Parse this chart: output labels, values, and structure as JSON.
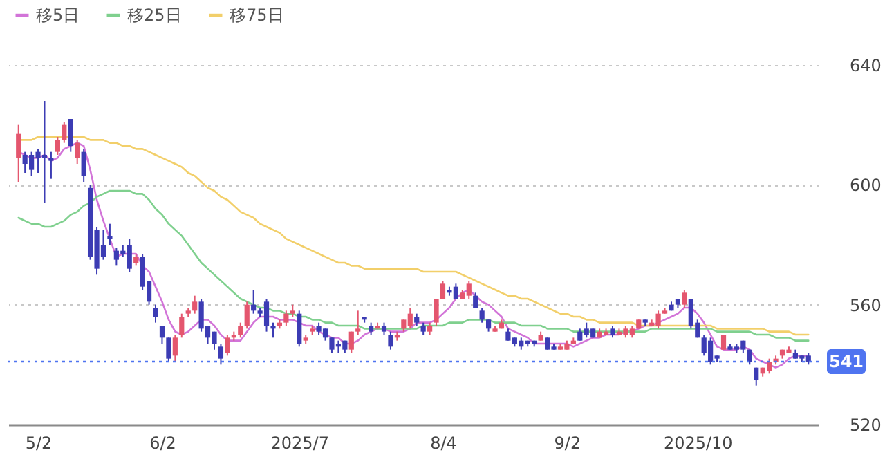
{
  "chart_data": {
    "type": "candlestick",
    "legend": "top left",
    "grid": "y",
    "ylim": [
      520,
      640
    ],
    "yticks": [
      520,
      560,
      600,
      640
    ],
    "categories": [
      null,
      null,
      null,
      "5/2",
      null,
      null,
      null,
      null,
      null,
      null,
      null,
      null,
      null,
      null,
      null,
      null,
      null,
      null,
      null,
      null,
      null,
      null,
      "6/2",
      null,
      null,
      null,
      null,
      null,
      null,
      null,
      null,
      null,
      null,
      null,
      null,
      null,
      null,
      null,
      null,
      null,
      null,
      null,
      null,
      "2025/7",
      null,
      null,
      null,
      null,
      null,
      null,
      null,
      null,
      null,
      null,
      null,
      null,
      null,
      null,
      null,
      null,
      null,
      null,
      null,
      null,
      null,
      "8/4",
      null,
      null,
      null,
      null,
      null,
      null,
      null,
      null,
      null,
      null,
      null,
      null,
      null,
      null,
      null,
      null,
      null,
      null,
      "9/2",
      null,
      null,
      null,
      null,
      null,
      null,
      null,
      null,
      null,
      null,
      null,
      null,
      null,
      null,
      null,
      null,
      null,
      null,
      null,
      "2025/10",
      null,
      null,
      null,
      null,
      null,
      null,
      null,
      null,
      null,
      null,
      null,
      null,
      null,
      null,
      null,
      null,
      null
    ],
    "ohlc": [
      [
        609,
        620,
        601,
        617
      ],
      [
        610,
        611,
        604,
        607
      ],
      [
        610,
        611,
        603,
        605
      ],
      [
        611,
        612,
        604,
        609
      ],
      [
        610,
        628,
        594,
        609
      ],
      [
        609,
        611,
        602,
        608
      ],
      [
        611,
        616,
        610,
        615
      ],
      [
        615,
        621,
        614,
        620
      ],
      [
        622,
        622,
        611,
        613
      ],
      [
        609,
        615,
        607,
        614
      ],
      [
        611,
        612,
        601,
        603
      ],
      [
        599,
        600,
        575,
        576
      ],
      [
        585,
        586,
        570,
        572
      ],
      [
        580,
        585,
        575,
        576
      ],
      [
        583,
        587,
        580,
        582
      ],
      [
        578,
        579,
        573,
        575
      ],
      [
        578,
        580,
        576,
        577
      ],
      [
        580,
        582,
        571,
        572
      ],
      [
        574,
        577,
        573,
        576
      ],
      [
        576,
        577,
        565,
        566
      ],
      [
        568,
        568,
        560,
        561
      ],
      [
        559,
        560,
        554,
        556
      ],
      [
        553,
        553,
        547,
        549
      ],
      [
        549,
        549,
        541,
        542
      ],
      [
        543,
        550,
        541,
        549
      ],
      [
        550,
        557,
        549,
        556
      ],
      [
        557,
        559,
        556,
        558
      ],
      [
        558,
        563,
        557,
        561
      ],
      [
        561,
        562,
        551,
        552
      ],
      [
        553,
        553,
        547,
        549
      ],
      [
        551,
        551,
        545,
        547
      ],
      [
        546,
        547,
        540,
        542
      ],
      [
        544,
        550,
        543,
        549
      ],
      [
        549,
        551,
        548,
        550
      ],
      [
        550,
        554,
        549,
        553
      ],
      [
        553,
        561,
        552,
        560
      ],
      [
        560,
        565,
        557,
        558
      ],
      [
        558,
        559,
        556,
        557
      ],
      [
        561,
        562,
        551,
        553
      ],
      [
        553,
        554,
        549,
        552
      ],
      [
        553,
        555,
        552,
        554
      ],
      [
        554,
        558,
        553,
        557
      ],
      [
        557,
        560,
        556,
        558
      ],
      [
        557,
        558,
        546,
        547
      ],
      [
        548,
        550,
        547,
        549
      ],
      [
        551,
        553,
        550,
        552
      ],
      [
        553,
        554,
        550,
        551
      ],
      [
        552,
        552,
        548,
        549
      ],
      [
        549,
        549,
        544,
        545
      ],
      [
        547,
        548,
        544,
        546
      ],
      [
        548,
        548,
        544,
        545
      ],
      [
        545,
        551,
        544,
        551
      ],
      [
        551,
        558,
        550,
        552
      ],
      [
        556,
        556,
        554,
        555
      ],
      [
        553,
        554,
        550,
        551
      ],
      [
        552,
        554,
        552,
        553
      ],
      [
        553,
        554,
        550,
        551
      ],
      [
        550,
        551,
        545,
        546
      ],
      [
        549,
        551,
        548,
        550
      ],
      [
        552,
        555,
        551,
        555
      ],
      [
        553,
        559,
        552,
        557
      ],
      [
        556,
        557,
        553,
        554
      ],
      [
        553,
        554,
        550,
        551
      ],
      [
        551,
        554,
        550,
        553
      ],
      [
        554,
        562,
        553,
        562
      ],
      [
        562,
        568,
        562,
        567
      ],
      [
        565,
        566,
        563,
        564
      ],
      [
        566,
        567,
        562,
        562
      ],
      [
        562,
        565,
        562,
        564
      ],
      [
        563,
        568,
        562,
        567
      ],
      [
        563,
        564,
        559,
        559
      ],
      [
        558,
        559,
        554,
        555
      ],
      [
        555,
        555,
        551,
        552
      ],
      [
        551,
        553,
        551,
        552
      ],
      [
        552,
        555,
        552,
        554
      ],
      [
        551,
        552,
        548,
        548
      ],
      [
        549,
        549,
        546,
        547
      ],
      [
        548,
        549,
        545,
        546
      ],
      [
        548,
        548,
        546,
        547
      ],
      [
        548,
        548,
        546,
        547
      ],
      [
        548,
        551,
        548,
        550
      ],
      [
        549,
        549,
        545,
        545
      ],
      [
        546,
        547,
        545,
        545
      ],
      [
        545,
        547,
        545,
        546
      ],
      [
        545,
        548,
        545,
        547
      ],
      [
        547,
        549,
        547,
        548
      ],
      [
        551,
        552,
        548,
        548
      ],
      [
        552,
        554,
        549,
        550
      ],
      [
        552,
        552,
        549,
        549
      ],
      [
        549,
        552,
        549,
        551
      ],
      [
        550,
        552,
        550,
        551
      ],
      [
        552,
        553,
        549,
        550
      ],
      [
        550,
        552,
        550,
        551
      ],
      [
        550,
        553,
        549,
        552
      ],
      [
        550,
        553,
        549,
        552
      ],
      [
        552,
        555,
        552,
        555
      ],
      [
        555,
        555,
        553,
        554
      ],
      [
        553,
        555,
        553,
        554
      ],
      [
        553,
        558,
        552,
        557
      ],
      [
        557,
        559,
        557,
        558
      ],
      [
        560,
        561,
        558,
        558
      ],
      [
        562,
        562,
        559,
        560
      ],
      [
        560,
        565,
        559,
        564
      ],
      [
        562,
        562,
        552,
        553
      ],
      [
        554,
        555,
        549,
        549
      ],
      [
        549,
        550,
        543,
        544
      ],
      [
        548,
        549,
        540,
        541
      ],
      [
        543,
        543,
        541,
        542
      ],
      [
        545,
        550,
        545,
        550
      ],
      [
        546,
        547,
        545,
        545
      ],
      [
        546,
        547,
        544,
        545
      ],
      [
        548,
        548,
        544,
        545
      ],
      [
        545,
        545,
        540,
        541
      ],
      [
        539,
        539,
        533,
        535
      ],
      [
        537,
        539,
        536,
        539
      ],
      [
        538,
        542,
        537,
        541
      ],
      [
        541,
        543,
        540,
        542
      ],
      [
        543,
        545,
        542,
        545
      ],
      [
        544,
        546,
        544,
        545
      ],
      [
        544,
        545,
        542,
        542
      ],
      [
        543,
        543,
        541,
        542
      ],
      [
        543,
        544,
        540,
        541
      ]
    ],
    "colors": [
      "#e4566e",
      "#3c3cb4",
      "#3c3cb4",
      "#3c3cb4",
      "#3c3cb4",
      "#3c3cb4",
      "#e4566e",
      "#e4566e",
      "#3c3cb4",
      "#e4566e",
      "#3c3cb4",
      "#3c3cb4",
      "#3c3cb4",
      "#3c3cb4",
      "#3c3cb4",
      "#3c3cb4",
      "#3c3cb4",
      "#3c3cb4",
      "#e4566e",
      "#3c3cb4",
      "#3c3cb4",
      "#3c3cb4",
      "#3c3cb4",
      "#3c3cb4",
      "#e4566e",
      "#e4566e",
      "#e4566e",
      "#e4566e",
      "#3c3cb4",
      "#3c3cb4",
      "#3c3cb4",
      "#3c3cb4",
      "#e4566e",
      "#e4566e",
      "#e4566e",
      "#e4566e",
      "#3c3cb4",
      "#3c3cb4",
      "#3c3cb4",
      "#3c3cb4",
      "#e4566e",
      "#e4566e",
      "#e4566e",
      "#3c3cb4",
      "#e4566e",
      "#e4566e",
      "#3c3cb4",
      "#3c3cb4",
      "#3c3cb4",
      "#3c3cb4",
      "#3c3cb4",
      "#e4566e",
      "#e4566e",
      "#3c3cb4",
      "#3c3cb4",
      "#e4566e",
      "#3c3cb4",
      "#3c3cb4",
      "#e4566e",
      "#e4566e",
      "#e4566e",
      "#3c3cb4",
      "#3c3cb4",
      "#e4566e",
      "#e4566e",
      "#e4566e",
      "#3c3cb4",
      "#3c3cb4",
      "#e4566e",
      "#e4566e",
      "#3c3cb4",
      "#3c3cb4",
      "#3c3cb4",
      "#e4566e",
      "#e4566e",
      "#3c3cb4",
      "#3c3cb4",
      "#3c3cb4",
      "#3c3cb4",
      "#3c3cb4",
      "#e4566e",
      "#3c3cb4",
      "#3c3cb4",
      "#e4566e",
      "#e4566e",
      "#e4566e",
      "#3c3cb4",
      "#3c3cb4",
      "#3c3cb4",
      "#e4566e",
      "#e4566e",
      "#3c3cb4",
      "#e4566e",
      "#e4566e",
      "#e4566e",
      "#e4566e",
      "#3c3cb4",
      "#e4566e",
      "#e4566e",
      "#e4566e",
      "#3c3cb4",
      "#3c3cb4",
      "#e4566e",
      "#3c3cb4",
      "#3c3cb4",
      "#3c3cb4",
      "#3c3cb4",
      "#3c3cb4",
      "#e4566e",
      "#3c3cb4",
      "#3c3cb4",
      "#3c3cb4",
      "#3c3cb4",
      "#3c3cb4",
      "#e4566e",
      "#e4566e",
      "#e4566e",
      "#e4566e",
      "#e4566e",
      "#3c3cb4",
      "#3c3cb4",
      "#3c3cb4"
    ],
    "series": [
      {
        "type": "line",
        "name": "移5日",
        "color": "#d274d8",
        "values": [
          611,
          610,
          609,
          609,
          610,
          608,
          609,
          612,
          613,
          614,
          613,
          605,
          595,
          588,
          582,
          576,
          577,
          577,
          577,
          573,
          571,
          566,
          561,
          555,
          551,
          550,
          551,
          553,
          555,
          555,
          553,
          550,
          548,
          548,
          548,
          551,
          554,
          556,
          556,
          556,
          555,
          555,
          555,
          554,
          553,
          553,
          551,
          550,
          549,
          549,
          547,
          547,
          548,
          550,
          551,
          552,
          552,
          551,
          551,
          551,
          552,
          554,
          554,
          554,
          555,
          557,
          559,
          562,
          564,
          565,
          563,
          561,
          560,
          558,
          556,
          552,
          551,
          550,
          549,
          547,
          547,
          547,
          547,
          547,
          547,
          546,
          547,
          548,
          549,
          549,
          550,
          550,
          550,
          551,
          551,
          552,
          553,
          553,
          554,
          555,
          556,
          557,
          559,
          559,
          557,
          554,
          550,
          546,
          545,
          545,
          545,
          546,
          545,
          542,
          541,
          540,
          539,
          540,
          542,
          543,
          543,
          543
        ]
      },
      {
        "type": "line",
        "name": "移25日",
        "color": "#7fd08e",
        "values": [
          589,
          588,
          587,
          587,
          586,
          586,
          587,
          588,
          590,
          591,
          593,
          594,
          596,
          597,
          598,
          598,
          598,
          598,
          597,
          597,
          595,
          592,
          590,
          587,
          585,
          583,
          580,
          577,
          574,
          572,
          570,
          568,
          566,
          564,
          562,
          561,
          560,
          559,
          559,
          558,
          558,
          557,
          557,
          556,
          556,
          555,
          555,
          554,
          554,
          553,
          553,
          553,
          553,
          552,
          552,
          552,
          552,
          552,
          552,
          552,
          552,
          552,
          553,
          553,
          553,
          553,
          554,
          554,
          554,
          555,
          555,
          555,
          555,
          554,
          554,
          554,
          554,
          553,
          553,
          553,
          553,
          552,
          552,
          552,
          552,
          551,
          551,
          551,
          551,
          551,
          551,
          551,
          551,
          551,
          551,
          551,
          551,
          552,
          552,
          552,
          552,
          552,
          552,
          552,
          552,
          552,
          552,
          551,
          551,
          551,
          551,
          551,
          551,
          550,
          550,
          550,
          549,
          549,
          549,
          548,
          548,
          548
        ]
      },
      {
        "type": "line",
        "name": "移75日",
        "color": "#f2cf6a",
        "values": [
          615,
          615,
          615,
          616,
          616,
          616,
          616,
          616,
          616,
          616,
          616,
          615,
          615,
          615,
          614,
          614,
          613,
          613,
          612,
          612,
          611,
          610,
          609,
          608,
          607,
          606,
          604,
          603,
          601,
          599,
          598,
          596,
          595,
          593,
          591,
          590,
          589,
          587,
          586,
          585,
          584,
          582,
          581,
          580,
          579,
          578,
          577,
          576,
          575,
          574,
          574,
          573,
          573,
          572,
          572,
          572,
          572,
          572,
          572,
          572,
          572,
          572,
          571,
          571,
          571,
          571,
          571,
          571,
          570,
          569,
          568,
          567,
          566,
          565,
          564,
          563,
          563,
          562,
          562,
          561,
          560,
          559,
          558,
          557,
          557,
          556,
          556,
          555,
          555,
          554,
          554,
          554,
          554,
          554,
          554,
          553,
          553,
          553,
          553,
          553,
          553,
          553,
          553,
          553,
          553,
          553,
          553,
          552,
          552,
          552,
          552,
          552,
          552,
          552,
          552,
          551,
          551,
          551,
          551,
          550,
          550,
          550
        ]
      }
    ],
    "ref_lines": [
      {
        "axis": "y",
        "value": 541,
        "label": "541",
        "color": "#4f74f0",
        "line_style": "dotted"
      }
    ]
  }
}
